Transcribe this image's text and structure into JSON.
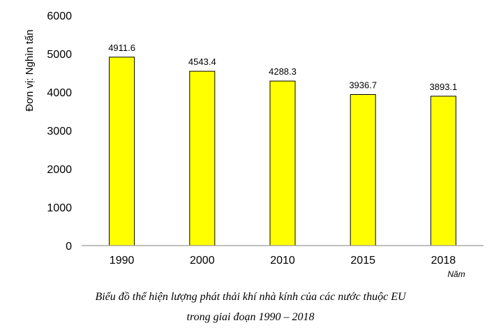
{
  "chart_data": {
    "type": "bar",
    "categories": [
      "1990",
      "2000",
      "2010",
      "2015",
      "2018"
    ],
    "values": [
      4911.6,
      4543.4,
      4288.3,
      3936.7,
      3893.1
    ],
    "value_labels": [
      "4911.6",
      "4543.4",
      "4288.3",
      "3936.7",
      "3893.1"
    ],
    "ylabel": "Đơn vị: Nghìn tấn",
    "xlabel": "Năm",
    "ylim": [
      0,
      6000
    ],
    "yticks": [
      0,
      1000,
      2000,
      3000,
      4000,
      5000,
      6000
    ],
    "grid": false,
    "bar_color": "#FFFF00",
    "bar_edge_color": "#000000"
  },
  "caption": {
    "line1": "Biểu đồ thể hiện lượng phát thải khí nhà kính của các nước thuộc EU",
    "line2": "trong giai đoạn 1990 – 2018"
  }
}
